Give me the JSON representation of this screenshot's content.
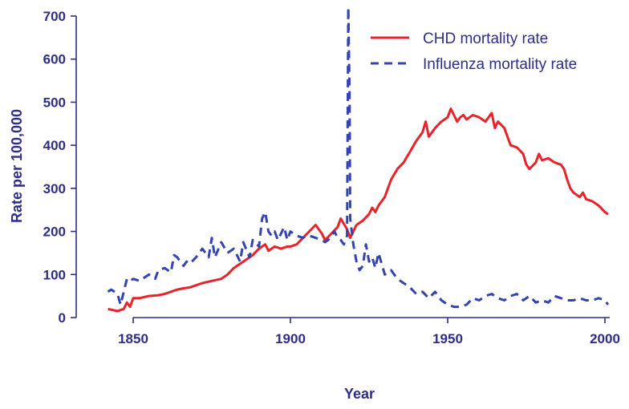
{
  "chart_data": {
    "type": "line",
    "title": "",
    "xlabel": "Year",
    "ylabel": "Rate per 100,000",
    "xlim": [
      1840,
      2002
    ],
    "ylim": [
      0,
      700
    ],
    "xticks": [
      1850,
      1900,
      1950,
      2000
    ],
    "yticks": [
      0,
      100,
      200,
      300,
      400,
      500,
      600,
      700
    ],
    "grid": false,
    "legend_position": "top-right",
    "colors": {
      "axis": "#2e2e86",
      "chd": "#e8232a",
      "flu": "#3344b0"
    },
    "series": [
      {
        "name": "CHD mortality rate",
        "style": "solid",
        "color": "#e8232a",
        "x": [
          1842,
          1845,
          1847,
          1848,
          1849,
          1850,
          1852,
          1855,
          1858,
          1860,
          1862,
          1864,
          1866,
          1868,
          1870,
          1872,
          1875,
          1878,
          1880,
          1882,
          1885,
          1888,
          1890,
          1892,
          1893,
          1895,
          1897,
          1899,
          1900,
          1902,
          1904,
          1906,
          1908,
          1910,
          1911,
          1913,
          1915,
          1916,
          1918,
          1919,
          1920,
          1921,
          1923,
          1925,
          1926,
          1927,
          1928,
          1930,
          1932,
          1934,
          1936,
          1938,
          1940,
          1942,
          1943,
          1944,
          1946,
          1948,
          1950,
          1951,
          1952,
          1953,
          1954,
          1955,
          1956,
          1957,
          1958,
          1960,
          1962,
          1964,
          1965,
          1966,
          1968,
          1970,
          1972,
          1974,
          1975,
          1976,
          1978,
          1979,
          1980,
          1982,
          1984,
          1986,
          1987,
          1988,
          1989,
          1990,
          1992,
          1993,
          1994,
          1996,
          1998,
          2000,
          2001
        ],
        "values": [
          20,
          15,
          20,
          35,
          25,
          45,
          45,
          50,
          52,
          55,
          60,
          65,
          68,
          70,
          75,
          80,
          85,
          90,
          100,
          115,
          130,
          145,
          160,
          170,
          155,
          165,
          160,
          165,
          165,
          170,
          185,
          200,
          215,
          195,
          180,
          195,
          210,
          230,
          205,
          185,
          200,
          215,
          225,
          240,
          255,
          245,
          260,
          280,
          320,
          345,
          360,
          385,
          410,
          430,
          455,
          420,
          440,
          455,
          465,
          485,
          470,
          455,
          465,
          470,
          460,
          465,
          470,
          465,
          455,
          475,
          440,
          455,
          440,
          400,
          395,
          380,
          355,
          345,
          360,
          380,
          365,
          370,
          360,
          355,
          345,
          320,
          300,
          290,
          280,
          290,
          275,
          270,
          260,
          245,
          240
        ]
      },
      {
        "name": "Influenza mortality rate",
        "style": "dashed",
        "color": "#3344b0",
        "x": [
          1842,
          1843,
          1845,
          1846,
          1848,
          1849,
          1850,
          1852,
          1854,
          1855,
          1857,
          1858,
          1860,
          1862,
          1863,
          1864,
          1866,
          1867,
          1868,
          1870,
          1872,
          1874,
          1875,
          1876,
          1878,
          1880,
          1882,
          1884,
          1885,
          1887,
          1888,
          1890,
          1891,
          1892,
          1893,
          1894,
          1895,
          1896,
          1898,
          1899,
          1900,
          1901,
          1902,
          1904,
          1905,
          1906,
          1908,
          1910,
          1911,
          1912,
          1914,
          1915,
          1916,
          1917,
          1918,
          1918.4,
          1918.8,
          1919,
          1920,
          1921,
          1922,
          1923,
          1924,
          1925,
          1926,
          1927,
          1928,
          1930,
          1932,
          1934,
          1936,
          1938,
          1940,
          1942,
          1944,
          1946,
          1948,
          1950,
          1952,
          1954,
          1956,
          1958,
          1960,
          1962,
          1964,
          1966,
          1968,
          1970,
          1972,
          1974,
          1976,
          1978,
          1980,
          1982,
          1984,
          1986,
          1988,
          1990,
          1992,
          1994,
          1996,
          1998,
          2000,
          2001
        ],
        "values": [
          60,
          65,
          55,
          30,
          90,
          85,
          90,
          85,
          95,
          100,
          90,
          110,
          115,
          105,
          145,
          140,
          120,
          130,
          125,
          140,
          160,
          140,
          185,
          140,
          175,
          150,
          160,
          130,
          175,
          140,
          180,
          165,
          230,
          245,
          200,
          190,
          200,
          180,
          210,
          180,
          200,
          195,
          190,
          185,
          190,
          190,
          185,
          180,
          175,
          180,
          200,
          185,
          180,
          170,
          190,
          720,
          520,
          230,
          170,
          130,
          110,
          120,
          170,
          130,
          140,
          115,
          150,
          100,
          110,
          90,
          80,
          70,
          55,
          60,
          45,
          60,
          40,
          30,
          25,
          25,
          30,
          45,
          40,
          50,
          55,
          45,
          40,
          50,
          55,
          40,
          50,
          35,
          40,
          35,
          50,
          45,
          40,
          40,
          45,
          40,
          40,
          45,
          40,
          30
        ]
      }
    ]
  }
}
